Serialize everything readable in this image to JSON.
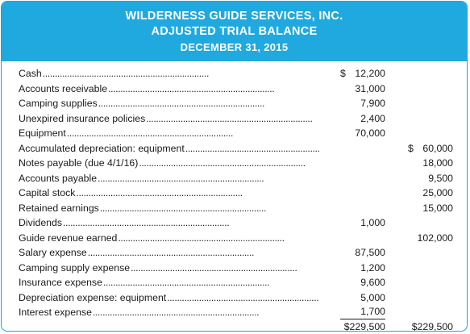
{
  "header": {
    "company": "WILDERNESS GUIDE SERVICES, INC.",
    "title": "ADJUSTED TRIAL BALANCE",
    "date": "DECEMBER 31, 2015",
    "color": "#1fa9df"
  },
  "rows": [
    {
      "label": "Cash",
      "debit_currency": "$",
      "debit": "12,200",
      "credit": ""
    },
    {
      "label": "Accounts receivable",
      "debit": "31,000",
      "credit": ""
    },
    {
      "label": "Camping supplies",
      "debit": "7,900",
      "credit": ""
    },
    {
      "label": "Unexpired insurance policies",
      "debit": "2,400",
      "credit": ""
    },
    {
      "label": "Equipment",
      "debit": "70,000",
      "credit": ""
    },
    {
      "label": "Accumulated depreciation: equipment",
      "debit": "",
      "credit_currency": "$",
      "credit": "60,000"
    },
    {
      "label": "Notes payable (due 4/1/16)",
      "debit": "",
      "credit": "18,000"
    },
    {
      "label": "Accounts payable",
      "debit": "",
      "credit": "9,500"
    },
    {
      "label": "Capital stock",
      "debit": "",
      "credit": "25,000"
    },
    {
      "label": "Retained earnings",
      "debit": "",
      "credit": "15,000"
    },
    {
      "label": "Dividends",
      "debit": "1,000",
      "credit": ""
    },
    {
      "label": "Guide revenue earned",
      "debit": "",
      "credit": "102,000"
    },
    {
      "label": "Salary expense",
      "debit": "87,500",
      "credit": ""
    },
    {
      "label": "Camping supply expense",
      "debit": "1,200",
      "credit": ""
    },
    {
      "label": "Insurance expense",
      "debit": "9,600",
      "credit": ""
    },
    {
      "label": "Depreciation expense: equipment",
      "debit": "5,000",
      "credit": ""
    },
    {
      "label": "Interest expense",
      "debit": "1,700",
      "credit": ""
    }
  ],
  "totals": {
    "debit": "$229,500",
    "credit": "$229,500"
  }
}
